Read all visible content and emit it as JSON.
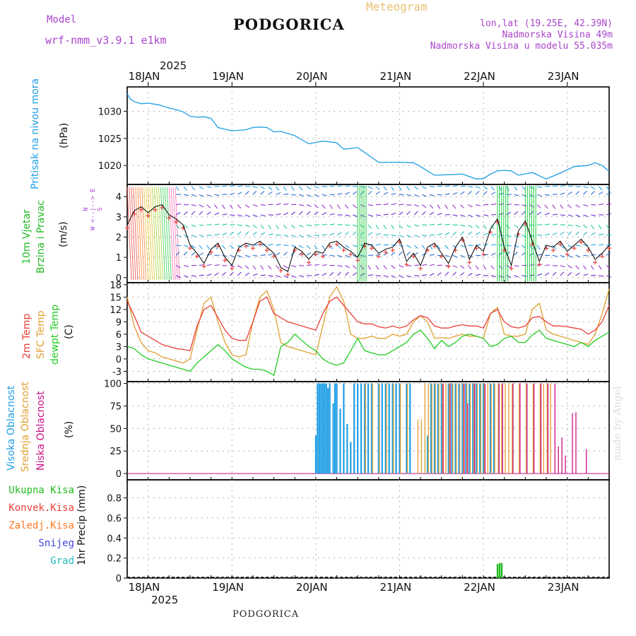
{
  "header": {
    "model_label": "Model",
    "model_name": "wrf-nmm_v3.9.1  e1km",
    "station": "PODGORICA",
    "product": "Meteogram",
    "coords": "lon,lat (19.25E, 42.39N)",
    "elev": "Nadmorska Visina 49m",
    "model_elev": "Nadmorska Visina u modelu 55.035m",
    "footer_station": "PODGORICA",
    "credit": "made by Angel"
  },
  "colors": {
    "pressure": "#1e9ee6",
    "temp2m": "#e8403a",
    "sfctemp": "#e0a030",
    "dewpt": "#22cc22",
    "high_cloud": "#1e9ee6",
    "mid_cloud": "#e0a030",
    "low_cloud": "#cc1188",
    "purple": "#aa44cc",
    "precip": "#22bb22"
  },
  "time_axis": {
    "year": "2025",
    "days": [
      "18JAN",
      "19JAN",
      "20JAN",
      "21JAN",
      "22JAN",
      "23JAN"
    ],
    "start_hour_offset": -6,
    "end_hour_offset": 132
  },
  "chart_data": [
    {
      "type": "line",
      "name": "pressure",
      "ylabel": [
        "Pritisak na nivou mora",
        "(hPa)"
      ],
      "ylim": [
        1016.5,
        1034.5
      ],
      "yticks": [
        "1020",
        "1025",
        "1030"
      ],
      "yticks_values": [
        1020,
        1025,
        1030
      ],
      "grid": true,
      "x_hours": [
        -6,
        -5,
        -4,
        -2,
        0,
        3,
        6,
        8,
        10,
        12,
        14,
        16,
        18,
        20,
        24,
        28,
        30,
        32,
        34,
        36,
        38,
        42,
        46,
        50,
        54,
        56,
        60,
        66,
        72,
        76,
        78,
        82,
        86,
        90,
        94,
        96,
        98,
        100,
        102,
        104,
        106,
        110,
        114,
        118,
        122,
        126,
        128,
        130,
        132
      ],
      "values": [
        1033.2,
        1032.2,
        1031.8,
        1031.4,
        1031.5,
        1031.2,
        1030.6,
        1030.3,
        1029.9,
        1029.1,
        1028.9,
        1029.0,
        1028.7,
        1027.0,
        1026.4,
        1026.6,
        1027.0,
        1027.1,
        1027.0,
        1026.2,
        1026.3,
        1025.5,
        1024.0,
        1024.5,
        1024.2,
        1023.0,
        1023.3,
        1020.6,
        1020.6,
        1020.5,
        1019.8,
        1018.2,
        1018.3,
        1018.4,
        1017.5,
        1017.6,
        1018.4,
        1019.0,
        1019.1,
        1019.0,
        1018.2,
        1018.7,
        1017.5,
        1018.6,
        1019.8,
        1020.0,
        1020.5,
        1020.0,
        1018.9
      ]
    },
    {
      "type": "line",
      "name": "wind",
      "ylabel": [
        "10m Vjetar",
        "Brzina i Pravac",
        "(m/s)"
      ],
      "compass": {
        "n": "N",
        "line": "W <--|--> E",
        "s": "S"
      },
      "ylim": [
        -0.25,
        4.6
      ],
      "yticks": [
        "0",
        "1",
        "2",
        "3",
        "4"
      ],
      "yticks_values": [
        0,
        1,
        2,
        3,
        4
      ],
      "grid": true,
      "x_hours": [
        -6,
        -4,
        -2,
        0,
        2,
        4,
        6,
        8,
        10,
        12,
        14,
        16,
        18,
        20,
        22,
        24,
        26,
        28,
        30,
        32,
        34,
        36,
        38,
        40,
        42,
        44,
        46,
        48,
        50,
        52,
        54,
        56,
        58,
        60,
        62,
        64,
        66,
        68,
        70,
        72,
        74,
        76,
        78,
        80,
        82,
        84,
        86,
        88,
        90,
        92,
        94,
        96,
        98,
        100,
        102,
        104,
        106,
        108,
        110,
        112,
        114,
        116,
        118,
        120,
        122,
        124,
        126,
        128,
        130,
        132
      ],
      "values": [
        2.6,
        3.3,
        3.5,
        3.2,
        3.5,
        3.6,
        3.1,
        2.9,
        2.6,
        1.6,
        1.2,
        0.7,
        1.4,
        1.7,
        1.0,
        0.6,
        1.5,
        1.7,
        1.6,
        1.8,
        1.5,
        1.2,
        0.5,
        0.3,
        1.5,
        1.3,
        0.9,
        1.3,
        1.2,
        1.7,
        1.8,
        1.5,
        1.3,
        1.0,
        1.7,
        1.6,
        1.2,
        1.4,
        1.5,
        1.9,
        0.8,
        1.2,
        0.6,
        1.5,
        1.7,
        1.2,
        0.7,
        1.5,
        2.0,
        0.9,
        1.6,
        1.3,
        2.4,
        2.9,
        1.5,
        0.6,
        2.3,
        2.8,
        1.8,
        0.8,
        1.6,
        1.5,
        1.8,
        1.3,
        1.6,
        1.9,
        1.5,
        0.9,
        1.2,
        1.6
      ]
    },
    {
      "type": "line",
      "name": "temperature",
      "ylabel": [
        "2m Temp",
        "SFC Temp",
        "dewpt Temp",
        "(C)"
      ],
      "ylim": [
        -5.5,
        18.5
      ],
      "yticks": [
        "-3",
        "0",
        "3",
        "6",
        "9",
        "12",
        "15",
        "18"
      ],
      "yticks_values": [
        -3,
        0,
        3,
        6,
        9,
        12,
        15,
        18
      ],
      "grid": true,
      "x_hours": [
        -6,
        -4,
        -2,
        0,
        2,
        4,
        6,
        8,
        10,
        12,
        14,
        16,
        18,
        20,
        22,
        24,
        26,
        28,
        30,
        32,
        34,
        36,
        38,
        40,
        42,
        44,
        46,
        48,
        50,
        52,
        54,
        56,
        58,
        60,
        62,
        64,
        66,
        68,
        70,
        72,
        74,
        76,
        78,
        80,
        82,
        84,
        86,
        88,
        90,
        92,
        94,
        96,
        98,
        100,
        102,
        104,
        106,
        108,
        110,
        112,
        114,
        116,
        118,
        120,
        122,
        124,
        126,
        128,
        130,
        132
      ],
      "series": [
        {
          "name": "2m Temp",
          "color": "#e8403a",
          "values": [
            14,
            10.5,
            6.5,
            5.5,
            4.5,
            3.5,
            3,
            2.5,
            2.3,
            2,
            8,
            12,
            13,
            10,
            7,
            5,
            4.5,
            4.5,
            9,
            14,
            15,
            11,
            10,
            9,
            8.5,
            8,
            7.5,
            7,
            11,
            14,
            15,
            13,
            11,
            9,
            8.5,
            8.5,
            7.8,
            7.5,
            8,
            7.5,
            8,
            9.5,
            10.5,
            10,
            8,
            7.5,
            7.5,
            8,
            8.3,
            8,
            8,
            7.5,
            11,
            12,
            9,
            7.8,
            7.5,
            8,
            10,
            10.3,
            9,
            8,
            8,
            7.8,
            7.5,
            7.2,
            6,
            7,
            9,
            13
          ]
        },
        {
          "name": "SFC Temp",
          "color": "#e0a030",
          "values": [
            15,
            8,
            4,
            2,
            1.5,
            0.5,
            0,
            -0.5,
            -1,
            0,
            7,
            13.5,
            15,
            9,
            4,
            1,
            0.5,
            1,
            9,
            15,
            16.5,
            12,
            4,
            3,
            2.5,
            2,
            1.5,
            1,
            8,
            15,
            17.5,
            14,
            6,
            5,
            5,
            5.5,
            5,
            5,
            6,
            5.5,
            6,
            9,
            10.5,
            9,
            5,
            5.2,
            5,
            5.5,
            6,
            5.5,
            5.5,
            5,
            11,
            12.5,
            6,
            5.5,
            5.5,
            6,
            12,
            13.5,
            7,
            6,
            5.5,
            5,
            4.5,
            4,
            3.5,
            6,
            11,
            17
          ]
        },
        {
          "name": "dewpt Temp",
          "color": "#22cc22",
          "values": [
            3,
            2.5,
            1,
            0,
            -0.5,
            -1,
            -1.5,
            -2,
            -2.5,
            -3,
            -1,
            0.5,
            2,
            3.5,
            2,
            0,
            -1,
            -2,
            -2.5,
            -2.5,
            -3,
            -4,
            3,
            4,
            6,
            4.5,
            3,
            2,
            0,
            -1,
            -1.5,
            -1,
            2,
            5,
            2,
            1.5,
            1,
            1,
            2,
            3,
            4,
            6,
            7,
            5,
            2.5,
            4.5,
            3,
            4,
            5.5,
            6,
            5.5,
            5,
            3,
            3.5,
            5,
            5.5,
            4,
            4,
            5.8,
            7,
            5,
            4.5,
            4,
            3.5,
            3,
            4,
            3,
            4.5,
            5.5,
            6.5
          ]
        }
      ]
    },
    {
      "type": "bar",
      "name": "cloud_cover",
      "ylabel": [
        "Visoka Oblacnost",
        "Srednja Oblacnost",
        "Niska Oblacnost",
        "(%)"
      ],
      "ylim": [
        -7,
        102
      ],
      "yticks": [
        "0",
        "25",
        "50",
        "75",
        "100"
      ],
      "yticks_values": [
        0,
        25,
        50,
        75,
        100
      ],
      "grid": true,
      "series": [
        {
          "name": "Visoka Oblacnost",
          "color": "#1e9ee6",
          "x_hours": [
            48,
            48.5,
            49,
            49.5,
            50,
            50.5,
            51,
            51.5,
            52,
            53,
            53.5,
            54,
            55,
            56,
            57,
            58,
            59,
            60,
            61,
            62,
            63,
            64,
            66,
            67,
            68,
            69,
            70,
            71,
            72,
            74,
            75,
            80,
            81,
            82,
            83,
            84,
            86,
            87,
            88,
            89,
            90,
            91,
            92,
            93,
            94,
            95,
            96,
            98,
            99
          ],
          "values": [
            42,
            100,
            100,
            100,
            100,
            100,
            100,
            95,
            100,
            78,
            100,
            100,
            72,
            100,
            55,
            35,
            100,
            100,
            100,
            100,
            100,
            100,
            100,
            100,
            100,
            100,
            100,
            100,
            100,
            100,
            100,
            42,
            100,
            100,
            100,
            100,
            100,
            100,
            100,
            100,
            100,
            100,
            100,
            100,
            100,
            100,
            100,
            100,
            100
          ]
        },
        {
          "name": "Srednja Oblacnost",
          "color": "#e0a030",
          "x_hours": [
            62,
            64,
            66,
            68,
            70,
            72,
            74,
            77,
            78,
            79,
            80,
            81,
            82,
            83,
            84,
            85,
            86,
            87,
            88,
            89,
            90,
            91,
            92,
            93,
            94,
            95,
            96,
            97,
            98,
            99,
            100,
            101,
            102,
            103,
            104,
            106,
            108,
            110,
            112,
            113,
            114,
            115
          ],
          "values": [
            100,
            100,
            100,
            100,
            100,
            100,
            100,
            60,
            60,
            100,
            100,
            100,
            100,
            100,
            100,
            100,
            100,
            100,
            100,
            100,
            100,
            100,
            100,
            100,
            100,
            100,
            100,
            100,
            100,
            100,
            100,
            100,
            100,
            100,
            100,
            100,
            100,
            100,
            100,
            100,
            100,
            100
          ]
        },
        {
          "name": "Niska Oblacnost",
          "color": "#cc1188",
          "x_hours": [
            84,
            86,
            90,
            91,
            93,
            96,
            100,
            101,
            104,
            106,
            108,
            110,
            112,
            114,
            116,
            117,
            118,
            119,
            121,
            122,
            125
          ],
          "values": [
            100,
            100,
            100,
            78,
            100,
            100,
            100,
            100,
            100,
            100,
            100,
            100,
            100,
            100,
            100,
            30,
            40,
            20,
            67,
            68,
            27
          ]
        }
      ]
    },
    {
      "type": "bar",
      "name": "precipitation",
      "ylabel": [
        "1hr Precip (mm)"
      ],
      "legend": [
        {
          "label": "Ukupna  Kisa",
          "color": "#22bb22"
        },
        {
          "label": "Konvek.Kisa",
          "color": "#e8403a"
        },
        {
          "label": "Zaledj.Kisa",
          "color": "#ff7722"
        },
        {
          "label": "Snijeg",
          "color": "#4444dd"
        },
        {
          "label": "Grad",
          "color": "#22bbbb"
        }
      ],
      "ylim": [
        0,
        0.98
      ],
      "yticks": [
        "0",
        "0.2",
        "0.4",
        "0.6",
        "0.8"
      ],
      "yticks_values": [
        0,
        0.2,
        0.4,
        0.6,
        0.8
      ],
      "grid": true,
      "series": [
        {
          "name": "Ukupna  Kisa",
          "color": "#22bb22",
          "x_hours": [
            100,
            100.6,
            101.2
          ],
          "values": [
            0.14,
            0.15,
            0.15
          ]
        }
      ]
    }
  ]
}
